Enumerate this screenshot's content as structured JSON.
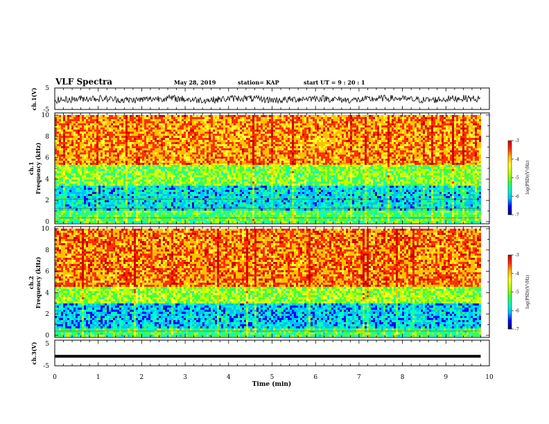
{
  "header": {
    "title": "VLF Spectra",
    "date": "May 28, 2019",
    "station": "station= KAP",
    "start": "start  UT =   9 : 20 : 1"
  },
  "colormap": [
    "#000060",
    "#0000ff",
    "#00bfff",
    "#00ffc8",
    "#40ff40",
    "#c0ff00",
    "#ffff30",
    "#ffc000",
    "#ff3000",
    "#d00000"
  ],
  "chart_data": [
    {
      "type": "line",
      "panel": "ch1-waveform",
      "ylabel": "ch.1(V)",
      "xlim": [
        0,
        10
      ],
      "ylim": [
        -5,
        5
      ],
      "yticks": [
        "5",
        "-5"
      ],
      "x_extent_min": 9.8,
      "description_values": {
        "mean": -0.2,
        "amplitude": 1.6
      }
    },
    {
      "type": "heatmap",
      "panel": "ch1-spectrogram",
      "ylabel": "ch.1\nFrequency (kHz)",
      "xlim": [
        0,
        10
      ],
      "ylim": [
        0,
        10
      ],
      "yticks": [
        "0",
        "2",
        "4",
        "6",
        "8",
        "10"
      ],
      "colorbar": {
        "label": "log(PSD)(V²/Hz)",
        "ticks": [
          "-3",
          "-4",
          "-5",
          "-6",
          "-7"
        ],
        "range": [
          -7,
          -3
        ]
      },
      "bands_khz": [
        {
          "from": 0,
          "to": 1.2,
          "level": -5.2
        },
        {
          "from": 1.2,
          "to": 3.4,
          "level": -5.8
        },
        {
          "from": 3.4,
          "to": 5.4,
          "level": -5.0
        },
        {
          "from": 5.4,
          "to": 10,
          "level": -3.9
        }
      ],
      "lines_khz": [
        5.5,
        2.1,
        1.25,
        0.35
      ]
    },
    {
      "type": "heatmap",
      "panel": "ch2-spectrogram",
      "ylabel": "ch.2\nFrequency (kHz)",
      "xlim": [
        0,
        10
      ],
      "ylim": [
        0,
        10
      ],
      "yticks": [
        "0",
        "2",
        "4",
        "6",
        "8",
        "10"
      ],
      "colorbar": {
        "label": "log(PSD)(V²/Hz)",
        "ticks": [
          "-3",
          "-4",
          "-5",
          "-6",
          "-7"
        ],
        "range": [
          -7,
          -3
        ]
      },
      "bands_khz": [
        {
          "from": 0,
          "to": 0.8,
          "level": -5.3
        },
        {
          "from": 0.8,
          "to": 3.0,
          "level": -5.9
        },
        {
          "from": 3.0,
          "to": 4.6,
          "level": -4.9
        },
        {
          "from": 4.6,
          "to": 10,
          "level": -3.8
        }
      ],
      "lines_khz": [
        0.4
      ]
    },
    {
      "type": "line",
      "panel": "ch3-waveform",
      "ylabel": "ch.3(V)",
      "xlabel": "Time (min)",
      "xlim": [
        0,
        10
      ],
      "ylim": [
        -5,
        5
      ],
      "yticks": [
        "5",
        "-5"
      ],
      "xticks": [
        "0",
        "1",
        "2",
        "3",
        "4",
        "5",
        "6",
        "7",
        "8",
        "9",
        "10"
      ],
      "constant_value": -1.3,
      "x_extent_min": 9.8
    }
  ]
}
